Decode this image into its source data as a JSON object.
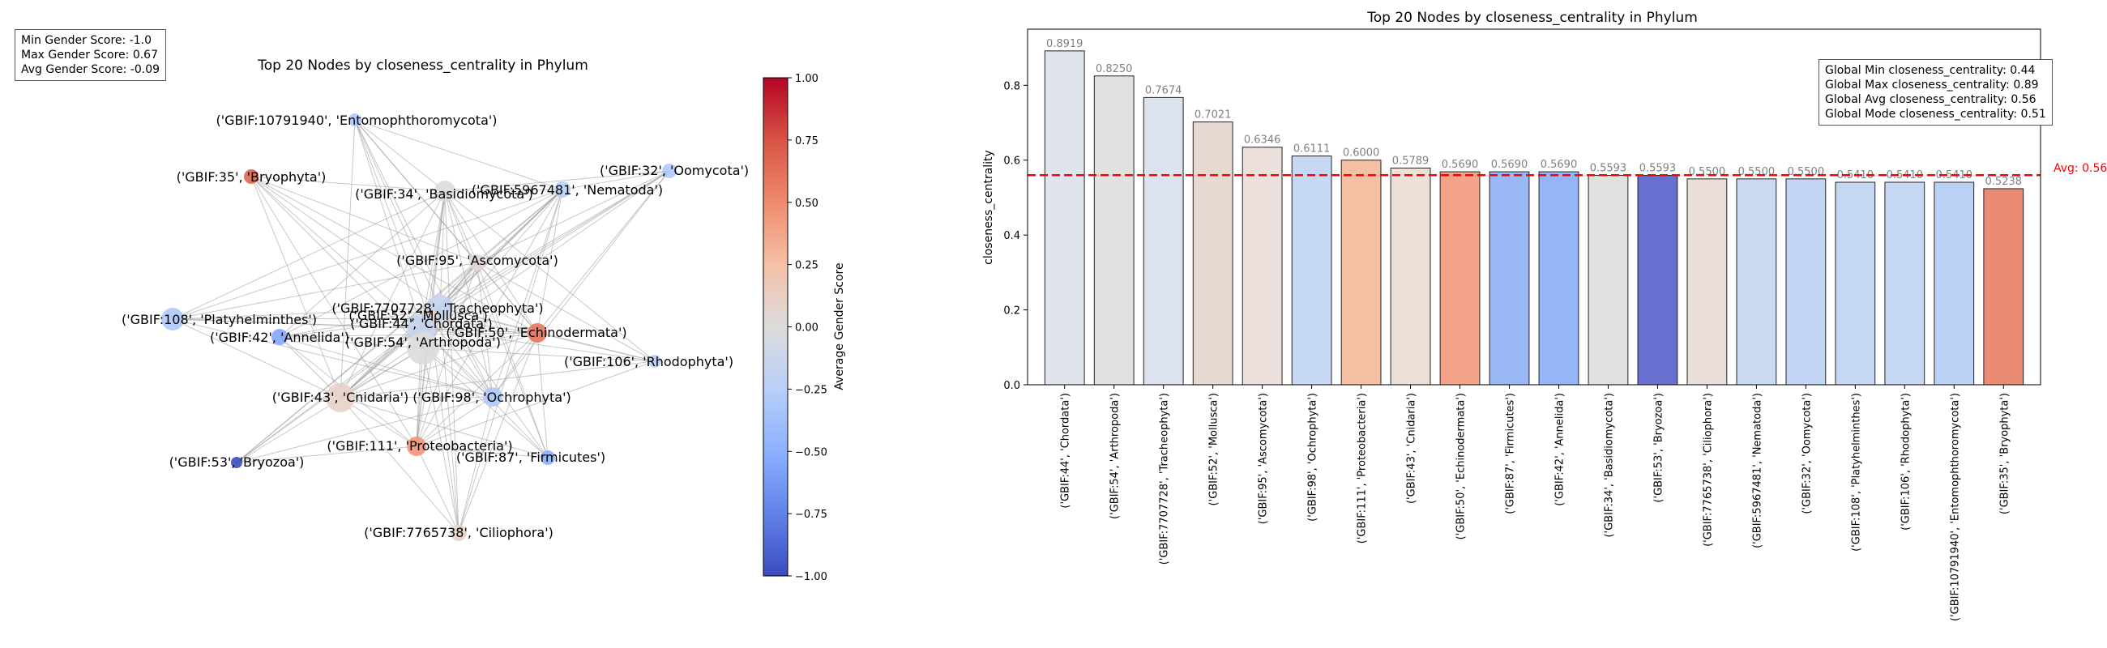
{
  "gender_stats": {
    "min": "Min Gender Score: -1.0",
    "max": "Max Gender Score: 0.67",
    "avg": "Avg Gender Score: -0.09"
  },
  "global_stats": {
    "min": "Global Min closeness_centrality: 0.44",
    "max": "Global Max closeness_centrality: 0.89",
    "avg": "Global Avg closeness_centrality: 0.56",
    "mode": "Global Mode closeness_centrality: 0.51"
  },
  "network": {
    "title": "Top 20 Nodes by closeness_centrality in Phylum",
    "colorbar_label": "Average Gender Score",
    "colorbar_ticks": [
      "1.00",
      "0.75",
      "0.50",
      "0.25",
      "0.00",
      "−0.25",
      "−0.50",
      "−0.75",
      "−1.00"
    ],
    "nodes": [
      {
        "label": "('GBIF:10791940', 'Entomophthoromycota')",
        "score": -0.3
      },
      {
        "label": "('GBIF:35', 'Bryophyta')",
        "score": 0.67
      },
      {
        "label": "('GBIF:34', 'Basidiomycota')",
        "score": 0.0
      },
      {
        "label": "('GBIF:5967481', 'Nematoda')",
        "score": -0.25
      },
      {
        "label": "('GBIF:32', 'Oomycota')",
        "score": -0.3
      },
      {
        "label": "('GBIF:95', 'Ascomycota')",
        "score": 0.05
      },
      {
        "label": "('GBIF:7707728', 'Tracheophyta')",
        "score": -0.15
      },
      {
        "label": "('GBIF:52', 'Mollusca')",
        "score": 0.1
      },
      {
        "label": "('GBIF:108', 'Platyhelminthes')",
        "score": -0.3
      },
      {
        "label": "('GBIF:44', 'Chordata')",
        "score": -0.15
      },
      {
        "label": "('GBIF:50', 'Echinodermata')",
        "score": 0.6
      },
      {
        "label": "('GBIF:42', 'Annelida')",
        "score": -0.55
      },
      {
        "label": "('GBIF:54', 'Arthropoda')",
        "score": 0.0
      },
      {
        "label": "('GBIF:106', 'Rhodophyta')",
        "score": -0.25
      },
      {
        "label": "('GBIF:43', 'Cnidaria')",
        "score": 0.1
      },
      {
        "label": "('GBIF:98', 'Ochrophyta')",
        "score": -0.3
      },
      {
        "label": "('GBIF:111', 'Proteobacteria')",
        "score": 0.45
      },
      {
        "label": "('GBIF:87', 'Firmicutes')",
        "score": -0.5
      },
      {
        "label": "('GBIF:53', 'Bryozoa')",
        "score": -1.0
      },
      {
        "label": "('GBIF:7765738', 'Ciliophora')",
        "score": 0.1
      }
    ]
  },
  "chart_data": {
    "type": "bar",
    "title": "Top 20 Nodes by closeness_centrality in Phylum",
    "xlabel": "",
    "ylabel": "closeness_centrality",
    "ylim": [
      0,
      0.95
    ],
    "yticks": [
      0.0,
      0.2,
      0.4,
      0.6,
      0.8
    ],
    "categories": [
      "('GBIF:44', 'Chordata')",
      "('GBIF:54', 'Arthropoda')",
      "('GBIF:7707728', 'Tracheophyta')",
      "('GBIF:52', 'Mollusca')",
      "('GBIF:95', 'Ascomycota')",
      "('GBIF:98', 'Ochrophyta')",
      "('GBIF:111', 'Proteobacteria')",
      "('GBIF:43', 'Cnidaria')",
      "('GBIF:50', 'Echinodermata')",
      "('GBIF:87', 'Firmicutes')",
      "('GBIF:42', 'Annelida')",
      "('GBIF:34', 'Basidiomycota')",
      "('GBIF:53', 'Bryozoa')",
      "('GBIF:7765738', 'Ciliophora')",
      "('GBIF:5967481', 'Nematoda')",
      "('GBIF:32', 'Oomycota')",
      "('GBIF:108', 'Platyhelminthes')",
      "('GBIF:106', 'Rhodophyta')",
      "('GBIF:10791940', 'Entomophthoromycota')",
      "('GBIF:35', 'Bryophyta')"
    ],
    "values": [
      0.8919,
      0.825,
      0.7674,
      0.7021,
      0.6346,
      0.6111,
      0.6,
      0.5789,
      0.569,
      0.569,
      0.569,
      0.5593,
      0.5593,
      0.55,
      0.55,
      0.55,
      0.541,
      0.541,
      0.541,
      0.5238
    ],
    "value_labels": [
      "0.8919",
      "0.8250",
      "0.7674",
      "0.7021",
      "0.6346",
      "0.6111",
      "0.6000",
      "0.5789",
      "0.5690",
      "0.5690",
      "0.5690",
      "0.5593",
      "0.5593",
      "0.5500",
      "0.5500",
      "0.5500",
      "0.5410",
      "0.5410",
      "0.5410",
      "0.5238"
    ],
    "bar_colors": [
      "#dfe3ec",
      "#e3e1df",
      "#dde3ee",
      "#e8dad3",
      "#ebe0db",
      "#c6d8f4",
      "#f5bfa3",
      "#ece0d9",
      "#f4a38a",
      "#9ab8f5",
      "#95b5f6",
      "#e2e0de",
      "#6a70d0",
      "#eadfd8",
      "#c9d9f2",
      "#c2d5f4",
      "#c6d7f3",
      "#c6d7f3",
      "#bad0f5",
      "#ea8b74"
    ],
    "average_line": {
      "value": 0.56,
      "label": "Avg: 0.56",
      "color": "#ff0000"
    }
  }
}
